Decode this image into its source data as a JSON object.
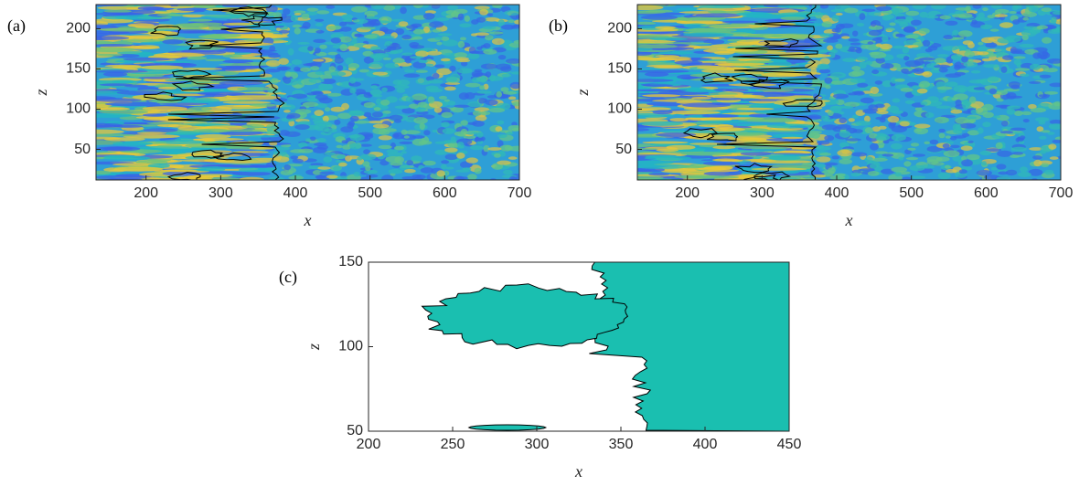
{
  "chart_data": [
    {
      "type": "heatmap",
      "panel_label": "(a)",
      "xlabel": "x",
      "ylabel": "z",
      "xlim": [
        133,
        700
      ],
      "ylim": [
        12,
        230
      ],
      "xticks": [
        200,
        300,
        400,
        500,
        600,
        700
      ],
      "yticks": [
        50,
        100,
        150,
        200
      ]
    },
    {
      "type": "heatmap",
      "panel_label": "(b)",
      "xlabel": "x",
      "ylabel": "z",
      "xlim": [
        133,
        700
      ],
      "ylim": [
        12,
        230
      ],
      "xticks": [
        200,
        300,
        400,
        500,
        600,
        700
      ],
      "yticks": [
        50,
        100,
        150,
        200
      ]
    },
    {
      "type": "contour",
      "panel_label": "(c)",
      "xlabel": "x",
      "ylabel": "z",
      "xlim": [
        200,
        450
      ],
      "ylim": [
        50,
        150
      ],
      "xticks": [
        200,
        250,
        300,
        350,
        400,
        450
      ],
      "yticks": [
        50,
        100,
        150
      ]
    }
  ]
}
